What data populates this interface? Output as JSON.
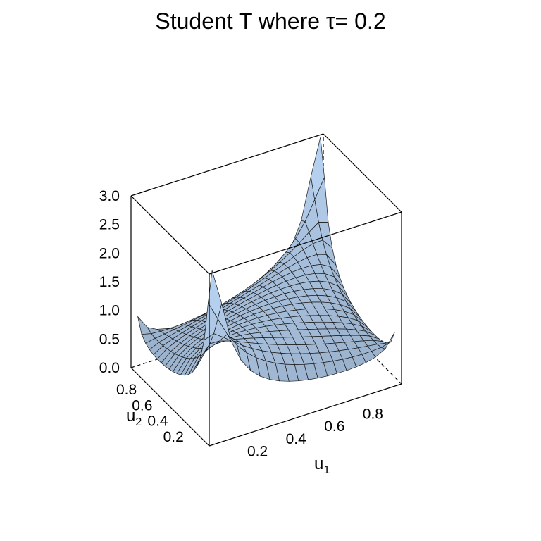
{
  "chart_data": {
    "type": "surface",
    "title": "Student T  where τ= 0.2",
    "xlabel": "u",
    "xlabel_sub": "1",
    "ylabel": "u",
    "ylabel_sub": "2",
    "zlabel": "",
    "xlim": [
      0,
      1
    ],
    "ylim": [
      0,
      1
    ],
    "zlim": [
      0,
      3
    ],
    "x_ticks": [
      "0.2",
      "0.4",
      "0.6",
      "0.8"
    ],
    "y_ticks": [
      "0.2",
      "0.4",
      "0.6",
      "0.8"
    ],
    "z_ticks": [
      "0.0",
      "0.5",
      "1.0",
      "1.5",
      "2.0",
      "2.5",
      "3.0"
    ],
    "copula": "Student t",
    "tau": 0.2,
    "grid_points": [
      0.025,
      0.975
    ],
    "grid_count": 20,
    "surface_color": "#b5d0ef",
    "mesh_color": "#1a1a1a",
    "box_color": "#000000"
  }
}
